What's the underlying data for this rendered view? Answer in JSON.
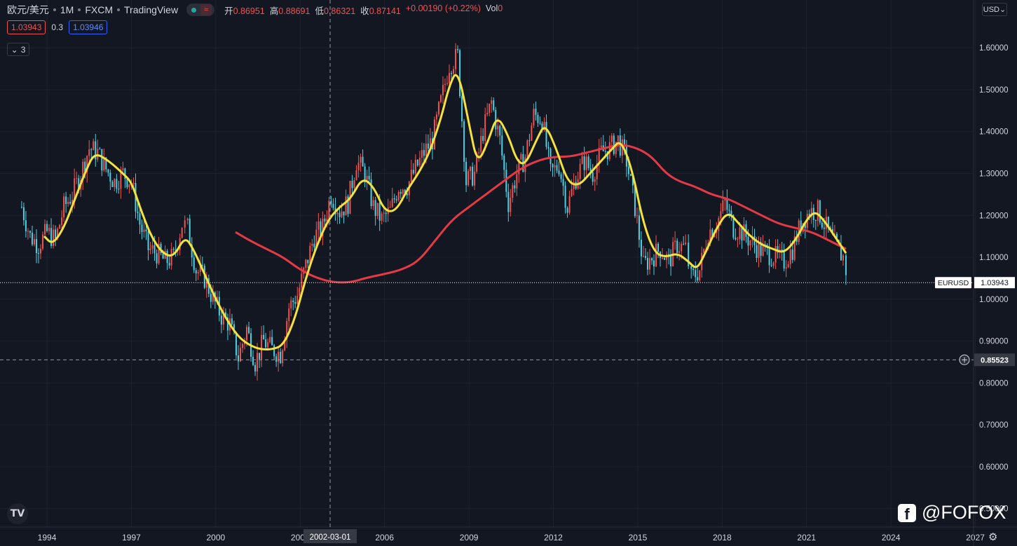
{
  "header": {
    "symbol": "欧元/美元",
    "interval": "1M",
    "exchange": "FXCM",
    "source": "TradingView",
    "ohlc": [
      {
        "k": "开",
        "v": "0.86951"
      },
      {
        "k": "高",
        "v": "0.88691"
      },
      {
        "k": "低",
        "v": "0.86321"
      },
      {
        "k": "收",
        "v": "0.87141"
      },
      {
        "k": "",
        "v": "+0.00190 (+0.22%)"
      },
      {
        "k": "Vol",
        "v": "0"
      }
    ],
    "bid": "1.03943",
    "spread": "0.3",
    "ask": "1.03946",
    "indicators_count": "3",
    "currency": "USD"
  },
  "price_labels": {
    "symbol_tag": "EURUSD",
    "last": "1.03943",
    "crosshair": "0.85523",
    "crosshair_date": "2002-03-01"
  },
  "watermark": "@FOFOX",
  "colors": {
    "bg": "#131722",
    "up": "#ef5350",
    "down": "#4dd0e1",
    "ma_fast": "#f5e23a",
    "ma_slow": "#e53945",
    "grid": "#1e222d"
  },
  "chart_data": {
    "type": "candlestick",
    "y_ticks": [
      "1.60000",
      "1.50000",
      "1.40000",
      "1.30000",
      "1.20000",
      "1.10000",
      "1.00000",
      "0.90000",
      "0.80000",
      "0.70000",
      "0.60000",
      "0.50000"
    ],
    "y_range": [
      0.456,
      1.714
    ],
    "x_ticks": [
      "1994",
      "1997",
      "2000",
      "2003",
      "2006",
      "2009",
      "2012",
      "2015",
      "2018",
      "2021",
      "2024",
      "2027"
    ],
    "x_range": [
      1992.33,
      2028.48
    ],
    "close_points": [
      [
        1993.1,
        1.22
      ],
      [
        1993.4,
        1.15
      ],
      [
        1993.7,
        1.13
      ],
      [
        1994.0,
        1.16
      ],
      [
        1994.3,
        1.14
      ],
      [
        1994.6,
        1.22
      ],
      [
        1994.9,
        1.25
      ],
      [
        1995.2,
        1.3
      ],
      [
        1995.5,
        1.36
      ],
      [
        1995.8,
        1.35
      ],
      [
        1996.1,
        1.31
      ],
      [
        1996.4,
        1.28
      ],
      [
        1996.7,
        1.3
      ],
      [
        1997.0,
        1.28
      ],
      [
        1997.3,
        1.18
      ],
      [
        1997.6,
        1.12
      ],
      [
        1997.9,
        1.11
      ],
      [
        1998.2,
        1.09
      ],
      [
        1998.5,
        1.1
      ],
      [
        1998.8,
        1.18
      ],
      [
        1999.0,
        1.17
      ],
      [
        1999.3,
        1.07
      ],
      [
        1999.6,
        1.05
      ],
      [
        1999.9,
        1.0
      ],
      [
        2000.2,
        0.96
      ],
      [
        2000.5,
        0.94
      ],
      [
        2000.8,
        0.86
      ],
      [
        2001.1,
        0.93
      ],
      [
        2001.4,
        0.85
      ],
      [
        2001.7,
        0.9
      ],
      [
        2002.0,
        0.88
      ],
      [
        2002.3,
        0.87
      ],
      [
        2002.6,
        0.98
      ],
      [
        2002.9,
        1.01
      ],
      [
        2003.2,
        1.08
      ],
      [
        2003.5,
        1.15
      ],
      [
        2003.8,
        1.17
      ],
      [
        2004.1,
        1.25
      ],
      [
        2004.4,
        1.21
      ],
      [
        2004.7,
        1.23
      ],
      [
        2005.0,
        1.33
      ],
      [
        2005.3,
        1.3
      ],
      [
        2005.6,
        1.22
      ],
      [
        2005.9,
        1.19
      ],
      [
        2006.2,
        1.21
      ],
      [
        2006.5,
        1.27
      ],
      [
        2006.8,
        1.27
      ],
      [
        2007.1,
        1.31
      ],
      [
        2007.4,
        1.35
      ],
      [
        2007.7,
        1.38
      ],
      [
        2008.0,
        1.47
      ],
      [
        2008.3,
        1.56
      ],
      [
        2008.6,
        1.58
      ],
      [
        2008.9,
        1.28
      ],
      [
        2009.2,
        1.3
      ],
      [
        2009.5,
        1.4
      ],
      [
        2009.8,
        1.47
      ],
      [
        2010.1,
        1.38
      ],
      [
        2010.4,
        1.23
      ],
      [
        2010.7,
        1.3
      ],
      [
        2011.0,
        1.34
      ],
      [
        2011.3,
        1.44
      ],
      [
        2011.6,
        1.43
      ],
      [
        2011.9,
        1.3
      ],
      [
        2012.2,
        1.32
      ],
      [
        2012.5,
        1.22
      ],
      [
        2012.8,
        1.29
      ],
      [
        2013.1,
        1.33
      ],
      [
        2013.4,
        1.3
      ],
      [
        2013.7,
        1.35
      ],
      [
        2014.0,
        1.36
      ],
      [
        2014.3,
        1.38
      ],
      [
        2014.6,
        1.33
      ],
      [
        2014.9,
        1.22
      ],
      [
        2015.2,
        1.08
      ],
      [
        2015.5,
        1.1
      ],
      [
        2015.8,
        1.12
      ],
      [
        2016.1,
        1.09
      ],
      [
        2016.4,
        1.13
      ],
      [
        2016.7,
        1.12
      ],
      [
        2016.9,
        1.05
      ],
      [
        2017.2,
        1.07
      ],
      [
        2017.5,
        1.16
      ],
      [
        2017.8,
        1.18
      ],
      [
        2018.1,
        1.23
      ],
      [
        2018.4,
        1.17
      ],
      [
        2018.7,
        1.16
      ],
      [
        2019.0,
        1.14
      ],
      [
        2019.3,
        1.12
      ],
      [
        2019.6,
        1.11
      ],
      [
        2019.9,
        1.1
      ],
      [
        2020.2,
        1.09
      ],
      [
        2020.5,
        1.12
      ],
      [
        2020.8,
        1.18
      ],
      [
        2021.1,
        1.21
      ],
      [
        2021.4,
        1.21
      ],
      [
        2021.7,
        1.17
      ],
      [
        2022.0,
        1.13
      ],
      [
        2022.3,
        1.1
      ],
      [
        2022.5,
        1.04
      ]
    ],
    "ma_fast_points": [
      [
        1993.9,
        1.15
      ],
      [
        1994.2,
        1.13
      ],
      [
        1994.6,
        1.17
      ],
      [
        1995.0,
        1.24
      ],
      [
        1995.4,
        1.31
      ],
      [
        1995.7,
        1.35
      ],
      [
        1996.2,
        1.33
      ],
      [
        1996.7,
        1.3
      ],
      [
        1997.0,
        1.28
      ],
      [
        1997.3,
        1.22
      ],
      [
        1997.7,
        1.15
      ],
      [
        1998.1,
        1.11
      ],
      [
        1998.5,
        1.1
      ],
      [
        1998.9,
        1.15
      ],
      [
        1999.2,
        1.12
      ],
      [
        1999.6,
        1.06
      ],
      [
        2000.0,
        1.0
      ],
      [
        2000.4,
        0.95
      ],
      [
        2000.8,
        0.91
      ],
      [
        2001.2,
        0.89
      ],
      [
        2001.6,
        0.88
      ],
      [
        2002.0,
        0.88
      ],
      [
        2002.4,
        0.89
      ],
      [
        2002.8,
        0.95
      ],
      [
        2003.2,
        1.05
      ],
      [
        2003.6,
        1.13
      ],
      [
        2004.0,
        1.19
      ],
      [
        2004.4,
        1.22
      ],
      [
        2004.8,
        1.24
      ],
      [
        2005.2,
        1.29
      ],
      [
        2005.6,
        1.27
      ],
      [
        2006.0,
        1.21
      ],
      [
        2006.4,
        1.21
      ],
      [
        2006.8,
        1.26
      ],
      [
        2007.2,
        1.3
      ],
      [
        2007.6,
        1.35
      ],
      [
        2008.0,
        1.43
      ],
      [
        2008.3,
        1.51
      ],
      [
        2008.6,
        1.55
      ],
      [
        2009.0,
        1.42
      ],
      [
        2009.3,
        1.32
      ],
      [
        2009.7,
        1.38
      ],
      [
        2010.0,
        1.44
      ],
      [
        2010.4,
        1.39
      ],
      [
        2010.7,
        1.33
      ],
      [
        2011.0,
        1.32
      ],
      [
        2011.4,
        1.38
      ],
      [
        2011.7,
        1.42
      ],
      [
        2012.1,
        1.36
      ],
      [
        2012.5,
        1.28
      ],
      [
        2012.9,
        1.27
      ],
      [
        2013.3,
        1.3
      ],
      [
        2013.7,
        1.33
      ],
      [
        2014.1,
        1.36
      ],
      [
        2014.4,
        1.38
      ],
      [
        2014.8,
        1.31
      ],
      [
        2015.2,
        1.18
      ],
      [
        2015.6,
        1.11
      ],
      [
        2016.0,
        1.1
      ],
      [
        2016.4,
        1.11
      ],
      [
        2016.8,
        1.09
      ],
      [
        2017.1,
        1.07
      ],
      [
        2017.4,
        1.11
      ],
      [
        2017.8,
        1.17
      ],
      [
        2018.2,
        1.21
      ],
      [
        2018.6,
        1.18
      ],
      [
        2019.0,
        1.15
      ],
      [
        2019.4,
        1.13
      ],
      [
        2019.8,
        1.12
      ],
      [
        2020.2,
        1.11
      ],
      [
        2020.6,
        1.14
      ],
      [
        2021.0,
        1.19
      ],
      [
        2021.3,
        1.21
      ],
      [
        2021.6,
        1.19
      ],
      [
        2022.0,
        1.15
      ],
      [
        2022.4,
        1.11
      ]
    ],
    "ma_slow_points": [
      [
        2000.7,
        1.16
      ],
      [
        2001.2,
        1.14
      ],
      [
        2001.8,
        1.12
      ],
      [
        2002.4,
        1.1
      ],
      [
        2003.0,
        1.07
      ],
      [
        2003.6,
        1.05
      ],
      [
        2004.2,
        1.04
      ],
      [
        2004.8,
        1.04
      ],
      [
        2005.3,
        1.05
      ],
      [
        2006.0,
        1.06
      ],
      [
        2006.6,
        1.07
      ],
      [
        2007.2,
        1.09
      ],
      [
        2007.8,
        1.14
      ],
      [
        2008.4,
        1.19
      ],
      [
        2009.0,
        1.22
      ],
      [
        2009.6,
        1.25
      ],
      [
        2010.2,
        1.28
      ],
      [
        2010.8,
        1.31
      ],
      [
        2011.4,
        1.33
      ],
      [
        2012.0,
        1.34
      ],
      [
        2012.6,
        1.34
      ],
      [
        2013.2,
        1.35
      ],
      [
        2013.8,
        1.36
      ],
      [
        2014.4,
        1.37
      ],
      [
        2015.0,
        1.36
      ],
      [
        2015.5,
        1.34
      ],
      [
        2016.0,
        1.3
      ],
      [
        2016.5,
        1.28
      ],
      [
        2017.0,
        1.27
      ],
      [
        2017.6,
        1.25
      ],
      [
        2018.2,
        1.24
      ],
      [
        2018.8,
        1.22
      ],
      [
        2019.4,
        1.2
      ],
      [
        2020.0,
        1.18
      ],
      [
        2020.6,
        1.17
      ],
      [
        2021.2,
        1.16
      ],
      [
        2021.8,
        1.14
      ],
      [
        2022.4,
        1.12
      ]
    ]
  }
}
